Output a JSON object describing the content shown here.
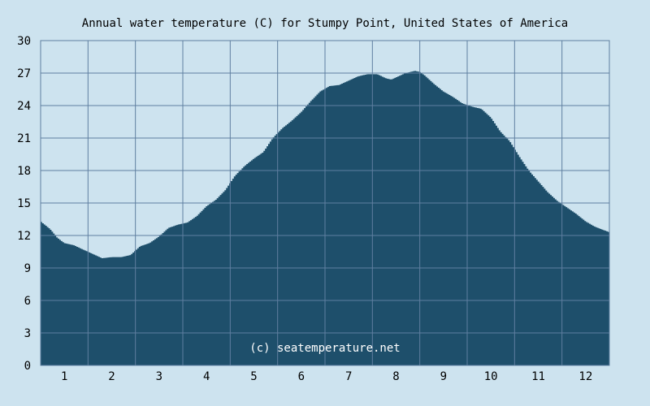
{
  "chart_data": {
    "type": "area",
    "title": "Annual water temperature (C) for Stumpy Point, United States of America",
    "xlabel": "",
    "ylabel": "",
    "x_tick_labels": [
      "1",
      "2",
      "3",
      "4",
      "5",
      "6",
      "7",
      "8",
      "9",
      "10",
      "11",
      "12"
    ],
    "y_tick_labels": [
      "0",
      "3",
      "6",
      "9",
      "12",
      "15",
      "18",
      "21",
      "24",
      "27",
      "30"
    ],
    "ylim": [
      0,
      30
    ],
    "xlim": [
      0.5,
      12.5
    ],
    "grid": true,
    "watermark": "(c) seatemperature.net",
    "x": [
      0.5,
      0.7,
      0.85,
      1.0,
      1.2,
      1.4,
      1.6,
      1.8,
      2.0,
      2.2,
      2.4,
      2.5,
      2.6,
      2.8,
      3.0,
      3.2,
      3.4,
      3.6,
      3.8,
      4.0,
      4.2,
      4.4,
      4.6,
      4.8,
      5.0,
      5.2,
      5.4,
      5.6,
      5.8,
      6.0,
      6.2,
      6.4,
      6.6,
      6.8,
      7.0,
      7.2,
      7.4,
      7.6,
      7.8,
      7.9,
      8.0,
      8.2,
      8.4,
      8.5,
      8.6,
      8.8,
      9.0,
      9.2,
      9.4,
      9.6,
      9.8,
      10.0,
      10.2,
      10.4,
      10.6,
      10.8,
      11.0,
      11.2,
      11.4,
      11.6,
      11.8,
      12.0,
      12.2,
      12.5
    ],
    "y": [
      13.3,
      12.6,
      11.8,
      11.3,
      11.1,
      10.7,
      10.3,
      9.9,
      10.0,
      10.0,
      10.2,
      10.6,
      11.0,
      11.3,
      11.9,
      12.7,
      13.0,
      13.2,
      13.8,
      14.7,
      15.3,
      16.2,
      17.5,
      18.4,
      19.1,
      19.7,
      21.0,
      21.9,
      22.6,
      23.4,
      24.4,
      25.3,
      25.8,
      25.9,
      26.3,
      26.7,
      26.9,
      26.9,
      26.5,
      26.4,
      26.6,
      27.0,
      27.2,
      27.1,
      26.8,
      26.0,
      25.3,
      24.8,
      24.2,
      23.9,
      23.7,
      22.9,
      21.6,
      20.7,
      19.3,
      18.0,
      17.0,
      16.0,
      15.2,
      14.6,
      14.0,
      13.3,
      12.8,
      12.3
    ],
    "fill_color": "#1e4f6b",
    "background_color": "#cde3ef",
    "grid_color": "#5f7fa0"
  }
}
